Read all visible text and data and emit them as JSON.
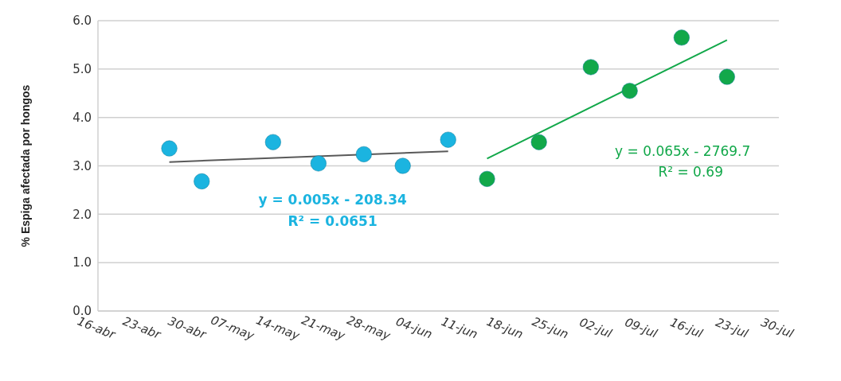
{
  "chart_data": {
    "type": "scatter",
    "ylabel": "% Espiga afectada por hongos",
    "grid": "y",
    "xlim": [
      "--04-16",
      "--07-30"
    ],
    "xticks": [
      {
        "value": "--04-16",
        "label": "16-abr"
      },
      {
        "value": "--04-23",
        "label": "23-abr"
      },
      {
        "value": "--04-30",
        "label": "30-abr"
      },
      {
        "value": "--05-07",
        "label": "07-may"
      },
      {
        "value": "--05-14",
        "label": "14-may"
      },
      {
        "value": "--05-21",
        "label": "21-may"
      },
      {
        "value": "--05-28",
        "label": "28-may"
      },
      {
        "value": "--06-04",
        "label": "04-jun"
      },
      {
        "value": "--06-11",
        "label": "11-jun"
      },
      {
        "value": "--06-18",
        "label": "18-jun"
      },
      {
        "value": "--06-25",
        "label": "25-jun"
      },
      {
        "value": "--07-02",
        "label": "02-jul"
      },
      {
        "value": "--07-09",
        "label": "09-jul"
      },
      {
        "value": "--07-16",
        "label": "16-jul"
      },
      {
        "value": "--07-23",
        "label": "23-jul"
      },
      {
        "value": "--07-30",
        "label": "30-jul"
      }
    ],
    "ylim": [
      0,
      6
    ],
    "yticks": [
      {
        "value": 0,
        "label": "0.0"
      },
      {
        "value": 1,
        "label": "1.0"
      },
      {
        "value": 2,
        "label": "2.0"
      },
      {
        "value": 3,
        "label": "3.0"
      },
      {
        "value": 4,
        "label": "4.0"
      },
      {
        "value": 5,
        "label": "5.0"
      },
      {
        "value": 6,
        "label": "6.0"
      }
    ],
    "series": [
      {
        "marker": "circle",
        "color": "#1bb4e0",
        "x": [
          "--04-27",
          "--05-02",
          "--05-13",
          "--05-20",
          "--05-27",
          "--06-02",
          "--06-09"
        ],
        "values": [
          3.36,
          2.68,
          3.49,
          3.05,
          3.24,
          3.0,
          3.54
        ]
      },
      {
        "marker": "circle",
        "color": "#12a84a",
        "x": [
          "--06-15",
          "--06-23",
          "--07-01",
          "--07-07",
          "--07-15",
          "--07-22"
        ],
        "values": [
          2.73,
          3.49,
          5.04,
          4.55,
          5.65,
          4.84
        ]
      },
      {
        "type": "line",
        "color": "#595959",
        "x": [
          "--04-27",
          "--06-09"
        ],
        "values": [
          3.08,
          3.3
        ]
      },
      {
        "type": "line",
        "color": "#12a84a",
        "x": [
          "--06-15",
          "--07-22"
        ],
        "values": [
          3.15,
          5.6
        ]
      }
    ],
    "annotations": [
      "y = 0.005x - 208.34",
      "R² = 0.0651",
      "y = 0.065x - 2769.7",
      "R² = 0.69"
    ]
  }
}
